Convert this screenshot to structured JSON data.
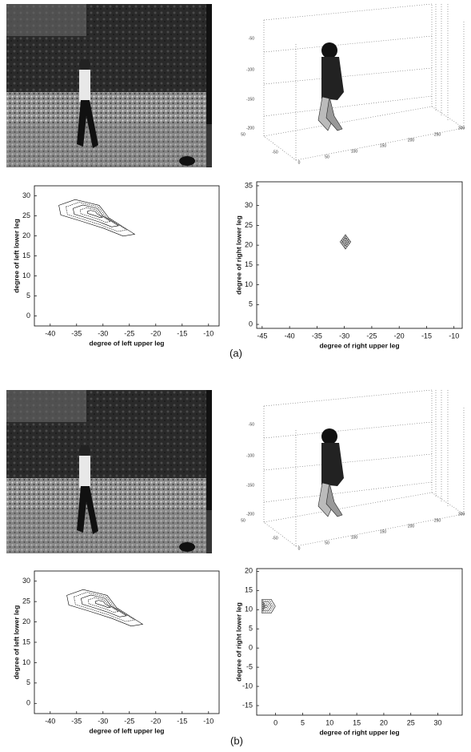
{
  "figure": {
    "panels": [
      {
        "label": "(a)",
        "pose_plot": {
          "zticks": [
            -50,
            -100,
            -150,
            -200
          ],
          "xticks": [
            0,
            50,
            100,
            150,
            200,
            250,
            300
          ],
          "yticks": [
            50,
            -50
          ]
        },
        "left_plot": {
          "xlabel": "degree of left upper leg",
          "ylabel": "degree of left lower leg",
          "xlim": [
            -43,
            -8
          ],
          "ylim": [
            -2.5,
            32.5
          ],
          "xticks": [
            -40,
            -35,
            -30,
            -25,
            -20,
            -15,
            -10
          ],
          "yticks": [
            0,
            5,
            10,
            15,
            20,
            25,
            30
          ]
        },
        "right_plot": {
          "xlabel": "degree of right upper leg",
          "ylabel": "degree of right lower leg",
          "xlim": [
            -46,
            -8.5
          ],
          "ylim": [
            -1,
            36
          ],
          "xticks": [
            -45,
            -40,
            -35,
            -30,
            -25,
            -20,
            -15,
            -10
          ],
          "yticks": [
            0,
            5,
            10,
            15,
            20,
            25,
            30,
            35
          ]
        }
      },
      {
        "label": "(b)",
        "pose_plot": {
          "zticks": [
            -50,
            -100,
            -150,
            -200
          ],
          "xticks": [
            0,
            50,
            100,
            150,
            200,
            250,
            300
          ],
          "yticks": [
            50,
            -50
          ]
        },
        "left_plot": {
          "xlabel": "degree of left upper leg",
          "ylabel": "degree of left lower leg",
          "xlim": [
            -43,
            -8
          ],
          "ylim": [
            -2.5,
            32.5
          ],
          "xticks": [
            -40,
            -35,
            -30,
            -25,
            -20,
            -15,
            -10
          ],
          "yticks": [
            0,
            5,
            10,
            15,
            20,
            25,
            30
          ]
        },
        "right_plot": {
          "xlabel": "degree of right upper leg",
          "ylabel": "degree of right lower leg",
          "xlim": [
            -3.5,
            34.5
          ],
          "ylim": [
            -17.5,
            20.7
          ],
          "xticks": [
            0,
            5,
            10,
            15,
            20,
            25,
            30
          ],
          "yticks": [
            -15,
            -10,
            -5,
            0,
            5,
            10,
            15,
            20
          ]
        }
      }
    ]
  }
}
